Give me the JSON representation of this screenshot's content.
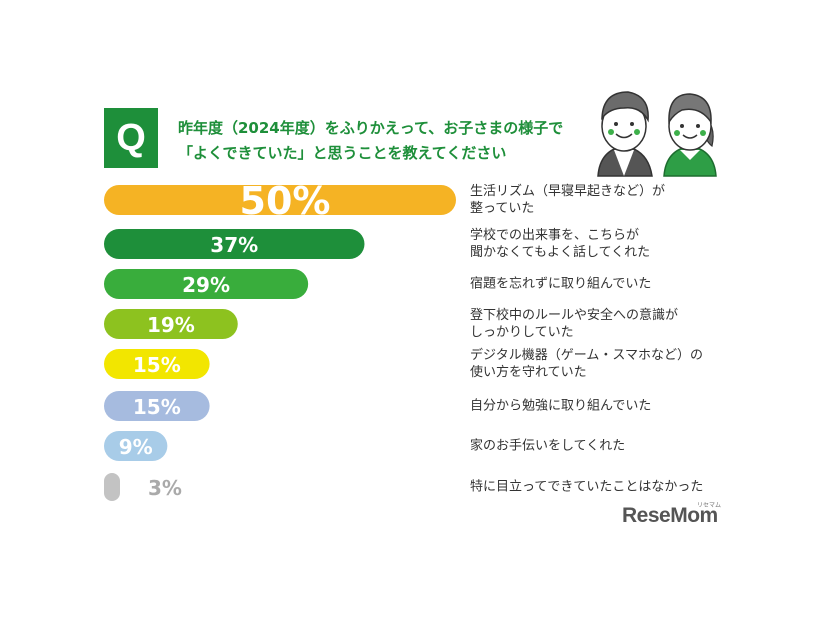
{
  "question": {
    "badge": "Q",
    "line1": "昨年度（2024年度）をふりかえって、お子さまの様子で",
    "line2": "「よくできていた」と思うことを教えてください"
  },
  "logo": {
    "text": "ReseMom",
    "kana": "リセマム"
  },
  "icons": [
    "father-illustration-icon",
    "mother-illustration-icon"
  ],
  "chart_data": {
    "type": "bar",
    "orientation": "horizontal",
    "xlim": [
      0,
      50
    ],
    "grid": false,
    "legend": "none",
    "unit": "%",
    "categories": [
      {
        "lines": [
          "生活リズム（早寝早起きなど）が",
          "整っていた"
        ]
      },
      {
        "lines": [
          "学校での出来事を、こちらが",
          "聞かなくてもよく話してくれた"
        ]
      },
      {
        "lines": [
          "宿題を忘れずに取り組んでいた"
        ]
      },
      {
        "lines": [
          "登下校中のルールや安全への意識が",
          "しっかりしていた"
        ]
      },
      {
        "lines": [
          "デジタル機器（ゲーム・スマホなど）の",
          "使い方を守れていた"
        ]
      },
      {
        "lines": [
          "自分から勉強に取り組んでいた"
        ]
      },
      {
        "lines": [
          "家のお手伝いをしてくれた"
        ]
      },
      {
        "lines": [
          "特に目立ってできていたことはなかった"
        ]
      }
    ],
    "values": [
      50,
      37,
      29,
      19,
      15,
      15,
      9,
      3
    ],
    "labels": [
      "50%",
      "37%",
      "29%",
      "19%",
      "15%",
      "15%",
      "9%",
      "3%"
    ],
    "colors": [
      "#f5b324",
      "#1e8f3a",
      "#39ad3c",
      "#8dc21f",
      "#f2e600",
      "#a6bbdf",
      "#a8cce8",
      "#c3c3c3"
    ]
  }
}
